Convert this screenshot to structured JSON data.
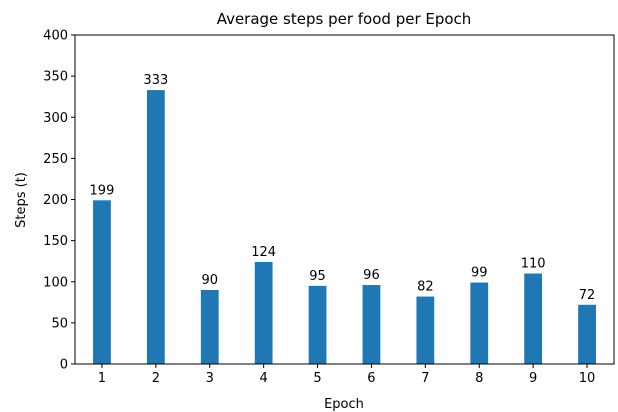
{
  "chart_data": {
    "type": "bar",
    "title": "Average steps per food per Epoch",
    "xlabel": "Epoch",
    "ylabel": "Steps (t)",
    "categories": [
      "1",
      "2",
      "3",
      "4",
      "5",
      "6",
      "7",
      "8",
      "9",
      "10"
    ],
    "values": [
      199,
      333,
      90,
      124,
      95,
      96,
      82,
      99,
      110,
      72
    ],
    "data_labels": [
      "199",
      "333",
      "90",
      "124",
      "95",
      "96",
      "82",
      "99",
      "110",
      "72"
    ],
    "ylim": [
      0,
      400
    ],
    "yticks": [
      0,
      50,
      100,
      150,
      200,
      250,
      300,
      350,
      400
    ],
    "ytick_labels": [
      "0",
      "50",
      "100",
      "150",
      "200",
      "250",
      "300",
      "350",
      "400"
    ],
    "grid": false,
    "bar_color": "#1f77b4"
  }
}
